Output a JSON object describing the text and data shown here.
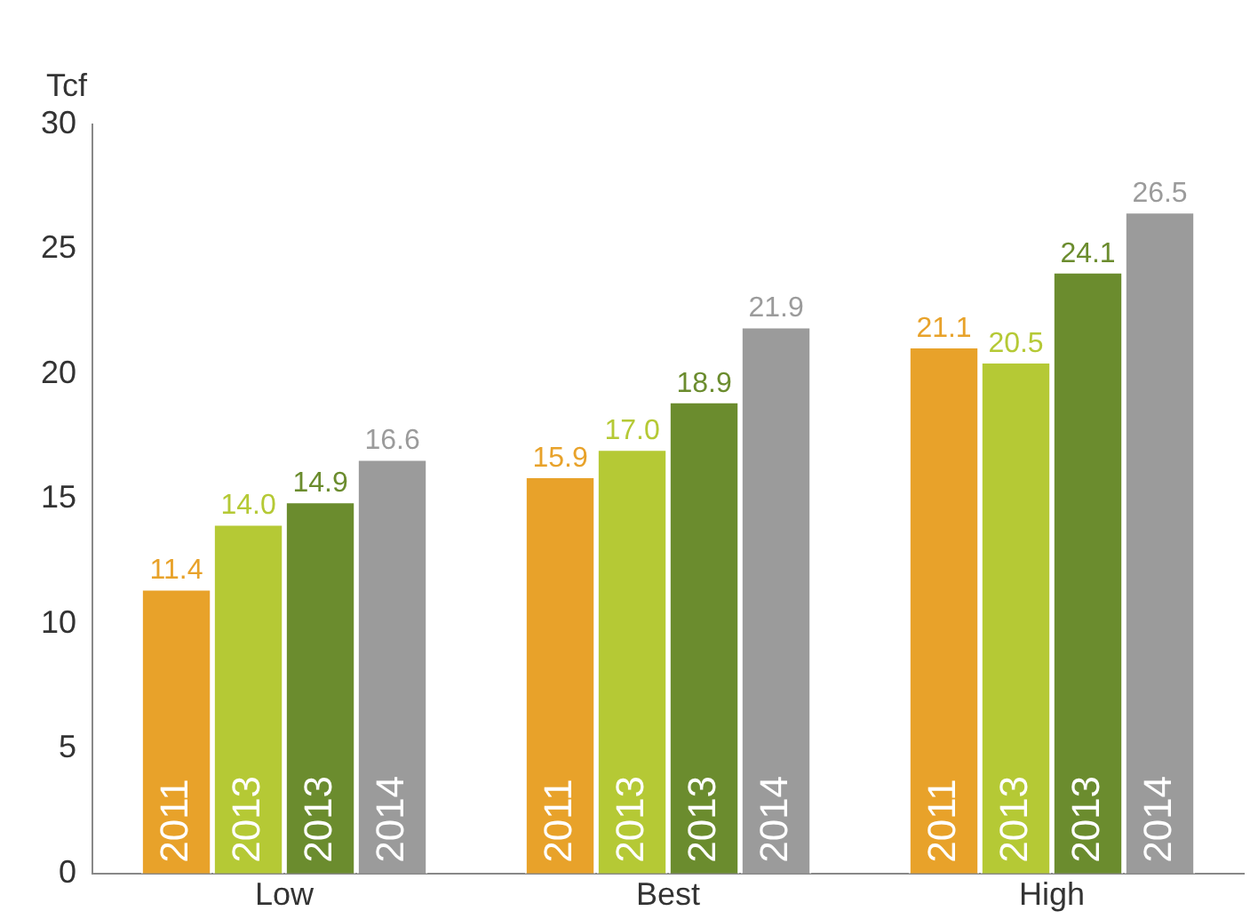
{
  "chart_data": {
    "type": "bar",
    "ylabel": "Tcf",
    "categories": [
      "Low",
      "Best",
      "High"
    ],
    "series": [
      {
        "name": "2011",
        "color": "#e8a22a",
        "values": [
          11.4,
          15.9,
          21.1
        ],
        "value_labels": [
          "11.4",
          "15.9",
          "21.1"
        ]
      },
      {
        "name": "2013",
        "color": "#b5c935",
        "values": [
          14.0,
          17.0,
          20.5
        ],
        "value_labels": [
          "14.0",
          "17.0",
          "20.5"
        ]
      },
      {
        "name": "2013",
        "color": "#6b8c2e",
        "values": [
          14.9,
          18.9,
          24.1
        ],
        "value_labels": [
          "14.9",
          "18.9",
          "24.1"
        ]
      },
      {
        "name": "2014",
        "color": "#9b9b9b",
        "values": [
          16.6,
          21.9,
          26.5
        ],
        "value_labels": [
          "16.6",
          "21.9",
          "26.5"
        ]
      }
    ],
    "ylim": [
      0,
      30
    ],
    "yticks": [
      0,
      5,
      10,
      15,
      20,
      25,
      30
    ],
    "grid": false,
    "legend": false
  }
}
